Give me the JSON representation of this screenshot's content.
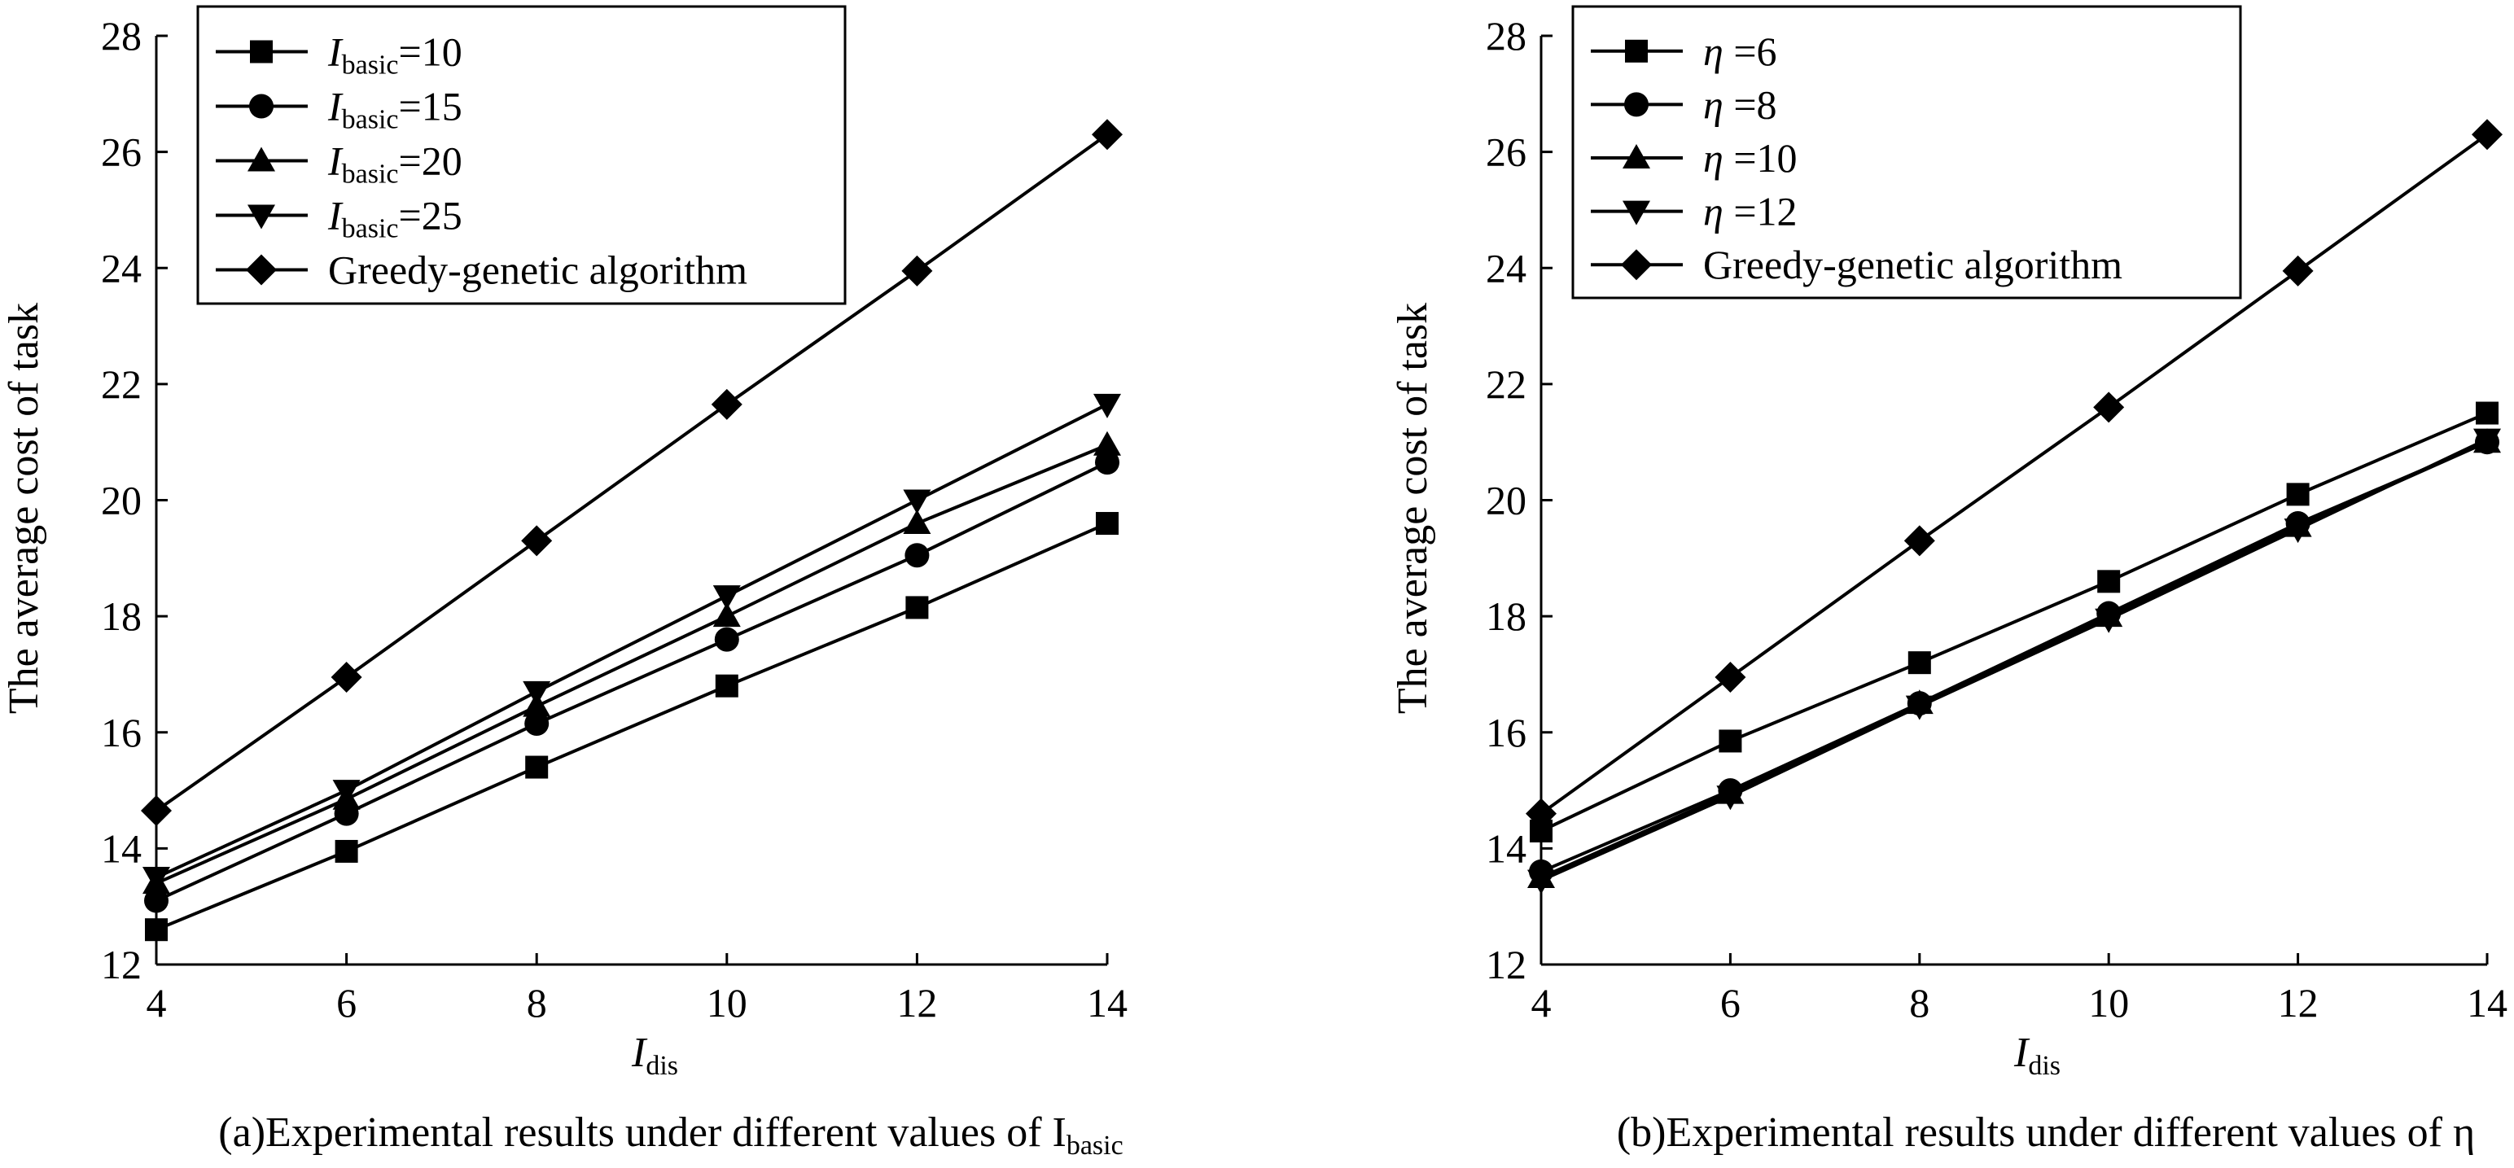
{
  "chart_data": [
    {
      "type": "line",
      "caption": "(a)Experimental results under different values of I",
      "caption_sub": "basic",
      "xlabel": "I",
      "xlabel_sub": "dis",
      "ylabel": "The average cost of task",
      "x": [
        4,
        6,
        8,
        10,
        12,
        14
      ],
      "xlim": [
        4,
        14
      ],
      "ylim": [
        12,
        28
      ],
      "xticks": [
        "4",
        "6",
        "8",
        "10",
        "12",
        "14"
      ],
      "yticks": [
        "12",
        "14",
        "16",
        "18",
        "20",
        "22",
        "24",
        "26",
        "28"
      ],
      "legend_position": "top-left",
      "series": [
        {
          "name_main": "I",
          "name_sub": "basic",
          "name_tail": "=10",
          "marker": "square",
          "values": [
            12.6,
            13.95,
            15.4,
            16.8,
            18.15,
            19.6
          ]
        },
        {
          "name_main": "I",
          "name_sub": "basic",
          "name_tail": "=15",
          "marker": "circle",
          "values": [
            13.1,
            14.6,
            16.15,
            17.6,
            19.05,
            20.65
          ]
        },
        {
          "name_main": "I",
          "name_sub": "basic",
          "name_tail": "=20",
          "marker": "triangle-up",
          "values": [
            13.4,
            14.85,
            16.45,
            18.0,
            19.6,
            20.95
          ]
        },
        {
          "name_main": "I",
          "name_sub": "basic",
          "name_tail": "=25",
          "marker": "triangle-down",
          "values": [
            13.5,
            15.0,
            16.7,
            18.35,
            20.0,
            21.65
          ]
        },
        {
          "name_main": "Greedy-genetic algorithm",
          "name_sub": "",
          "name_tail": "",
          "marker": "diamond",
          "values": [
            14.65,
            16.95,
            19.3,
            21.65,
            23.95,
            26.3
          ]
        }
      ]
    },
    {
      "type": "line",
      "caption": "(b)Experimental results under different values of η",
      "caption_sub": "",
      "xlabel": "I",
      "xlabel_sub": "dis",
      "ylabel": "The average cost of task",
      "x": [
        4,
        6,
        8,
        10,
        12,
        14
      ],
      "xlim": [
        4,
        14
      ],
      "ylim": [
        12,
        28
      ],
      "xticks": [
        "4",
        "6",
        "8",
        "10",
        "12",
        "14"
      ],
      "yticks": [
        "12",
        "14",
        "16",
        "18",
        "20",
        "22",
        "24",
        "26",
        "28"
      ],
      "legend_position": "top-left",
      "series": [
        {
          "name_main": "η",
          "name_sub": "",
          "name_tail": " =6",
          "marker": "square",
          "values": [
            14.3,
            15.85,
            17.2,
            18.6,
            20.1,
            21.5
          ]
        },
        {
          "name_main": "η",
          "name_sub": "",
          "name_tail": " =8",
          "marker": "circle",
          "values": [
            13.6,
            15.0,
            16.5,
            18.05,
            19.6,
            21.0
          ]
        },
        {
          "name_main": "η",
          "name_sub": "",
          "name_tail": " =10",
          "marker": "triangle-up",
          "values": [
            13.5,
            14.95,
            16.5,
            18.0,
            19.55,
            21.0
          ]
        },
        {
          "name_main": "η",
          "name_sub": "",
          "name_tail": " =12",
          "marker": "triangle-down",
          "values": [
            13.45,
            14.9,
            16.45,
            17.95,
            19.5,
            21.05
          ]
        },
        {
          "name_main": "Greedy-genetic algorithm",
          "name_sub": "",
          "name_tail": "",
          "marker": "diamond",
          "values": [
            14.6,
            16.95,
            19.3,
            21.6,
            23.95,
            26.3
          ]
        }
      ]
    }
  ]
}
